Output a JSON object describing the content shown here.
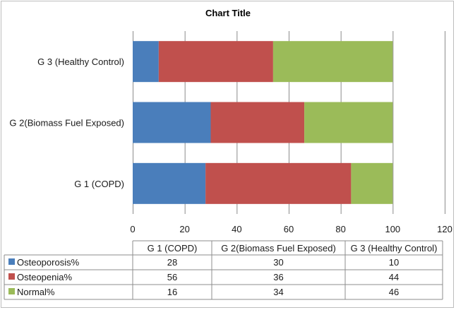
{
  "chart_data": {
    "type": "bar",
    "orientation": "horizontal",
    "stacked": true,
    "title": "Chart Title",
    "categories": [
      "G 1 (COPD)",
      "G 2(Biomass Fuel Exposed)",
      "G 3 (Healthy Control)"
    ],
    "series": [
      {
        "name": "Osteoporosis%",
        "values": [
          28,
          30,
          10
        ],
        "color": "#4a7ebb"
      },
      {
        "name": "Osteopenia%",
        "values": [
          56,
          36,
          44
        ],
        "color": "#c0504d"
      },
      {
        "name": "Normal%",
        "values": [
          16,
          34,
          46
        ],
        "color": "#9bbb59"
      }
    ],
    "x_ticks": [
      "0",
      "20",
      "40",
      "60",
      "80",
      "100",
      "120"
    ],
    "xlim": [
      0,
      120
    ],
    "grid": true,
    "legend": "data-table-below",
    "data_table": {
      "headers": [
        "G 1 (COPD)",
        "G 2(Biomass Fuel Exposed)",
        "G 3 (Healthy Control)"
      ],
      "rows": [
        {
          "series": "Osteoporosis%",
          "cells": [
            "28",
            "30",
            "10"
          ]
        },
        {
          "series": "Osteopenia%",
          "cells": [
            "56",
            "36",
            "44"
          ]
        },
        {
          "series": "Normal%",
          "cells": [
            "16",
            "34",
            "46"
          ]
        }
      ]
    }
  }
}
